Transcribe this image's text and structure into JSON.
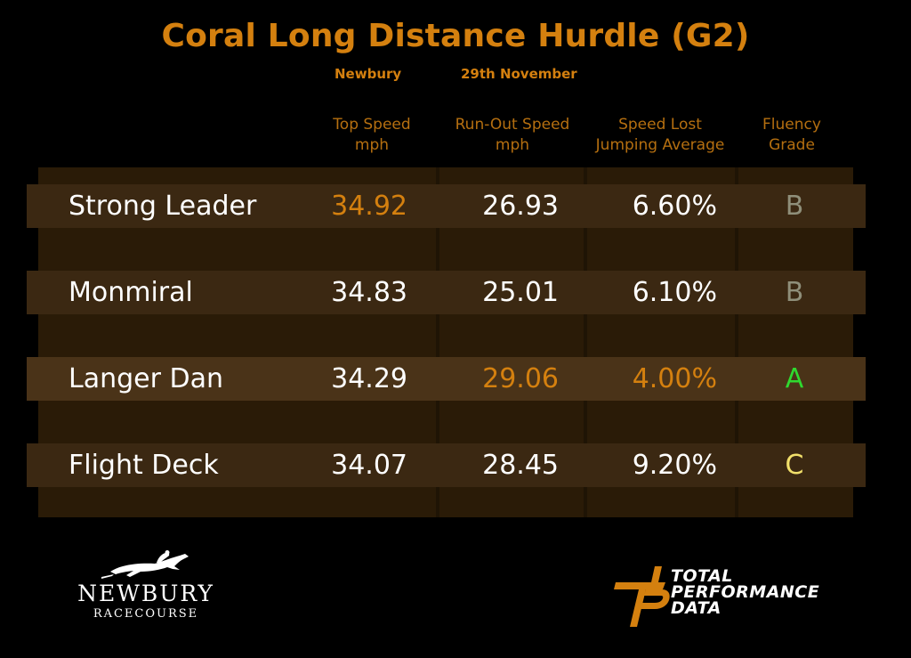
{
  "title": "Coral Long Distance Hurdle (G2)",
  "venue": "Newbury",
  "date": "29th November",
  "chart_data": {
    "type": "table",
    "columns": [
      {
        "line1": "Top Speed",
        "line2": "mph"
      },
      {
        "line1": "Run-Out Speed",
        "line2": "mph"
      },
      {
        "line1": "Speed Lost",
        "line2": "Jumping Average"
      },
      {
        "line1": "Fluency",
        "line2": "Grade"
      }
    ],
    "rows": [
      {
        "name": "Strong Leader",
        "top_speed": "34.92",
        "run_out_speed": "26.93",
        "speed_lost": "6.60%",
        "grade": "B"
      },
      {
        "name": "Monmiral",
        "top_speed": "34.83",
        "run_out_speed": "25.01",
        "speed_lost": "6.10%",
        "grade": "B"
      },
      {
        "name": "Langer Dan",
        "top_speed": "34.29",
        "run_out_speed": "29.06",
        "speed_lost": "4.00%",
        "grade": "A"
      },
      {
        "name": "Flight Deck",
        "top_speed": "34.07",
        "run_out_speed": "28.45",
        "speed_lost": "9.20%",
        "grade": "C"
      }
    ]
  },
  "colors": {
    "accent": "#d4800f",
    "header": "#b56f10",
    "best": "#d4800f",
    "grade_a": "#2fd92f",
    "grade_b": "#8f8f7a",
    "grade_c": "#f2e06b"
  },
  "logos": {
    "newbury": {
      "name": "NEWBURY",
      "sub": "RACECOURSE",
      "icon": "horse-and-jockey-icon"
    },
    "tpd": {
      "line1": "TOTAL",
      "line2": "PERFORMANCE",
      "line3": "DATA",
      "icon": "tpd-monogram-icon"
    }
  }
}
